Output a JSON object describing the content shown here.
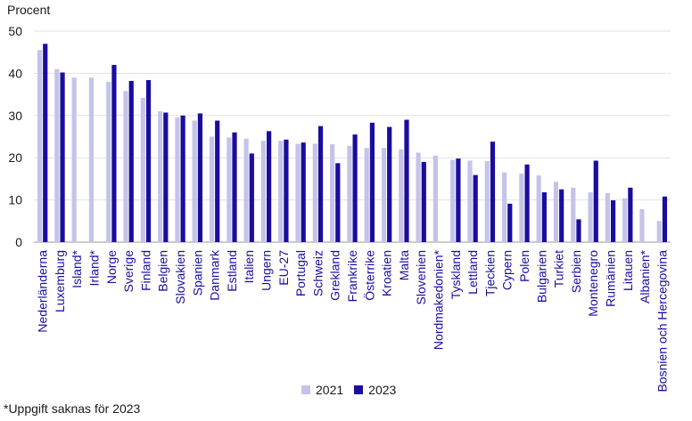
{
  "chart_data": {
    "type": "bar",
    "ylabel": "Procent",
    "ylim": [
      0,
      50
    ],
    "yticks": [
      0,
      10,
      20,
      30,
      40,
      50
    ],
    "grid": true,
    "legend_position": "bottom-center",
    "categories": [
      "Nederländerna",
      "Luxemburg",
      "Island*",
      "Irland*",
      "Norge",
      "Sverige",
      "Finland",
      "Belgien",
      "Slovakien",
      "Spanien",
      "Danmark",
      "Estland",
      "Italien",
      "Ungern",
      "EU-27",
      "Portugal",
      "Schweiz",
      "Grekland",
      "Frankrike",
      "Österrike",
      "Kroatien",
      "Malta",
      "Slovenien",
      "Nordmakedonien*",
      "Tyskland",
      "Lettland",
      "Tjeckien",
      "Cypern",
      "Polen",
      "Bulgarien",
      "Turkiet",
      "Serbien",
      "Montenegro",
      "Rumänien",
      "Litauen",
      "Albanien*",
      "Bosnien och Hercegovina"
    ],
    "series": [
      {
        "name": "2021",
        "color": "#c5c3ea",
        "values": [
          45.5,
          41.0,
          39.0,
          39.0,
          38.0,
          35.8,
          34.2,
          31.0,
          29.5,
          28.8,
          25.0,
          24.8,
          24.5,
          24.0,
          24.0,
          23.3,
          23.3,
          23.2,
          22.8,
          22.3,
          22.3,
          22.0,
          21.2,
          20.5,
          19.5,
          19.3,
          19.2,
          16.5,
          16.2,
          15.8,
          14.3,
          12.9,
          11.8,
          11.6,
          10.4,
          7.8,
          5.0
        ]
      },
      {
        "name": "2023",
        "color": "#1a0d9e",
        "values": [
          47.0,
          40.2,
          null,
          null,
          42.0,
          38.2,
          38.4,
          30.7,
          30.0,
          30.5,
          28.8,
          26.0,
          21.0,
          26.3,
          24.3,
          23.6,
          27.5,
          18.7,
          25.5,
          28.3,
          27.3,
          29.0,
          19.0,
          null,
          19.8,
          15.9,
          23.8,
          9.1,
          18.4,
          11.8,
          12.5,
          5.4,
          19.3,
          9.9,
          12.9,
          null,
          10.8
        ]
      }
    ]
  },
  "footnote": "*Uppgift saknas för 2023"
}
